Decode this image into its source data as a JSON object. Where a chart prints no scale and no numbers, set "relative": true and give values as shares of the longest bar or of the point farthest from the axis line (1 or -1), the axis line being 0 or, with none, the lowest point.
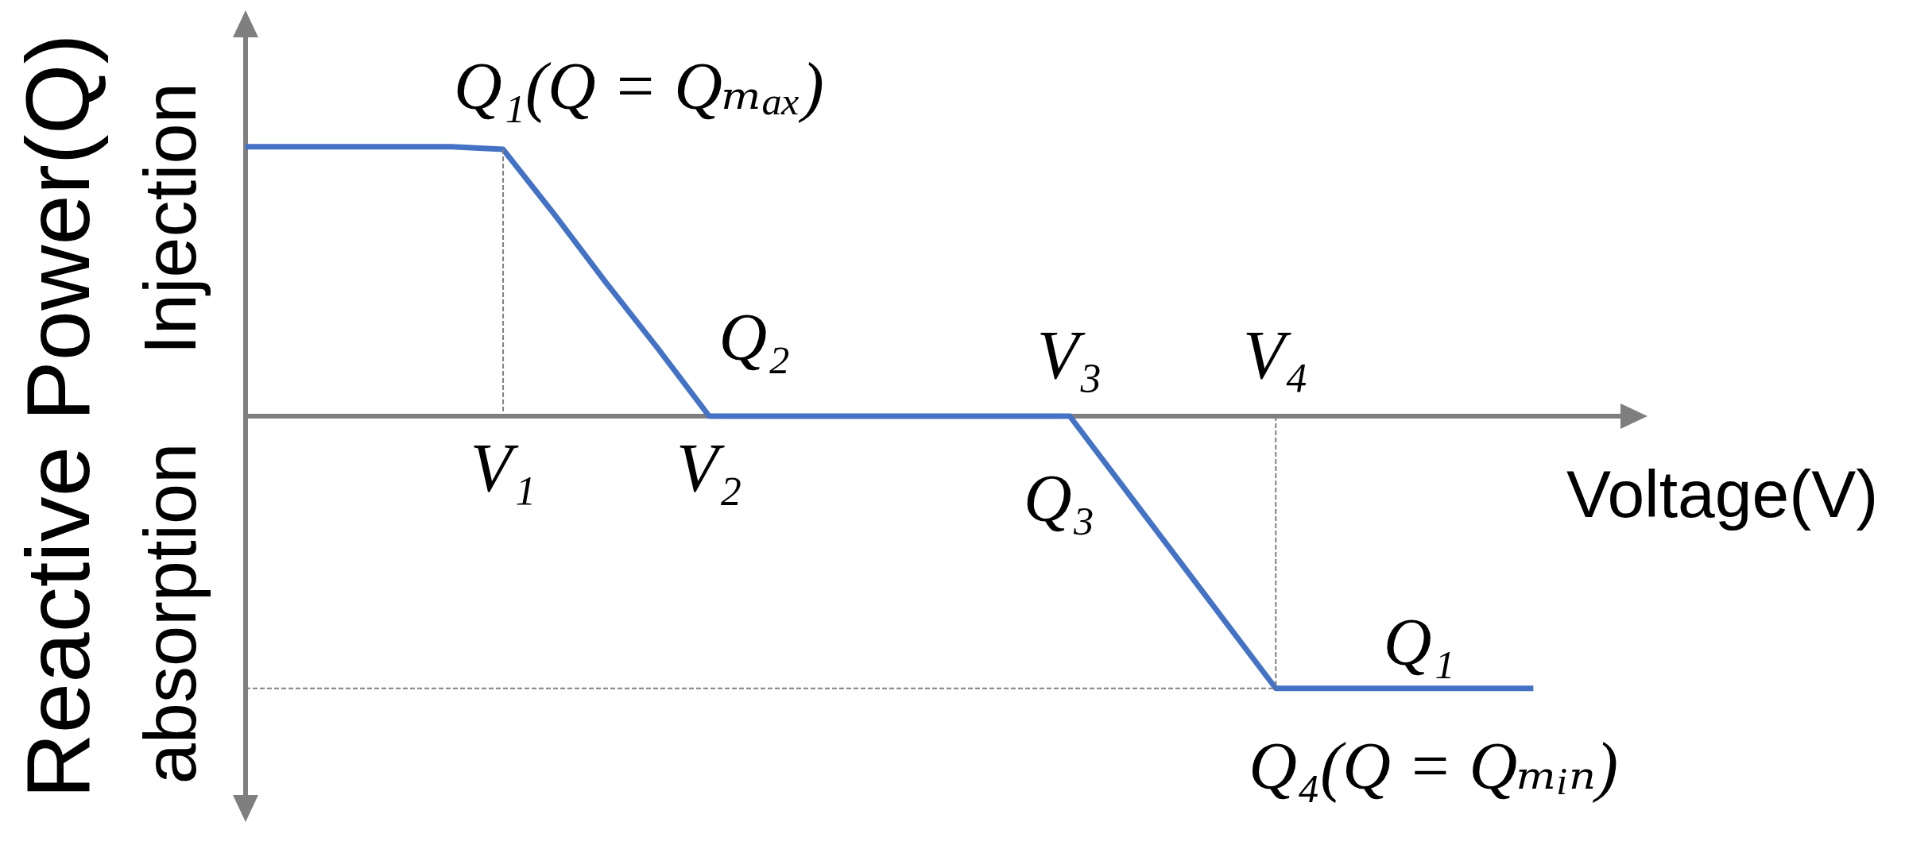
{
  "chart_data": {
    "type": "line",
    "relative": true,
    "xlabel": "Voltage(V)",
    "ylabel": "Reactive Power(Q)",
    "categories": [
      null,
      null,
      null,
      null,
      null,
      "V₁",
      null,
      null,
      null,
      "V₂",
      null,
      null,
      null,
      null,
      null,
      null,
      "V₃",
      null,
      null,
      null,
      "V₄",
      null,
      null,
      null,
      null,
      null,
      null,
      null
    ],
    "series": [
      {
        "color": "#4472c4",
        "values": [
          0.99,
          0.99,
          0.99,
          0.99,
          0.99,
          0.98,
          0.74,
          0.49,
          0.25,
          0,
          0,
          0,
          0,
          0,
          0,
          0,
          0,
          -0.25,
          -0.5,
          -0.75,
          -1,
          -1,
          -1,
          -1,
          -1,
          -1,
          null,
          null
        ]
      },
      {
        "color": "#808080",
        "line_style": "dashed",
        "x": [
          "V₁",
          "V₁"
        ],
        "values": [
          0.98,
          0
        ]
      },
      {
        "color": "#808080",
        "line_style": "dashed",
        "x": [
          "V₄",
          "V₄"
        ],
        "values": [
          0,
          -1
        ]
      },
      {
        "color": "#808080",
        "line_style": "dashed",
        "values": [
          -1,
          -1,
          -1,
          -1,
          -1,
          -1,
          -1,
          -1,
          -1,
          -1,
          -1,
          -1,
          -1,
          -1,
          -1,
          -1,
          -1,
          -1,
          -1,
          -1,
          -1,
          null,
          null,
          null,
          null,
          null,
          null,
          null
        ]
      }
    ],
    "annotations": [
      "Injection",
      "absorption",
      {
        "text": "Q₁(Q = Qₘₐₓ)",
        "x": "V₁",
        "y": 0.98
      },
      {
        "text": "Q₂",
        "x": "V₂",
        "y": 0
      },
      {
        "text": "Q₃",
        "x": "V₃",
        "y": 0
      },
      {
        "text": "Q₁",
        "y": -1
      },
      {
        "text": "Q₄(Q = Qₘᵢₙ)",
        "x": "V₄",
        "y": -1
      }
    ],
    "marker": "none"
  }
}
